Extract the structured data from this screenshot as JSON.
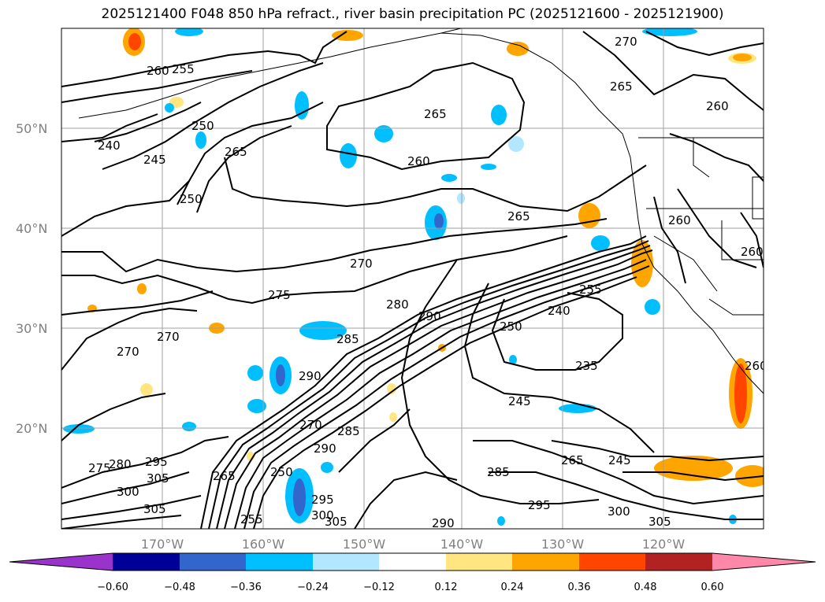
{
  "title": "2025121400 F048 850 hPa refract., river basin precipitation PC (2025121600 - 2025121900)",
  "lat_labels": [
    "50°N",
    "40°N",
    "30°N",
    "20°N"
  ],
  "lon_labels": [
    "170°W",
    "160°W",
    "150°W",
    "140°W",
    "130°W",
    "120°W"
  ],
  "contour_labels": [
    "260",
    "255",
    "240",
    "245",
    "250",
    "250",
    "265",
    "265",
    "260",
    "270",
    "265",
    "260",
    "265",
    "260",
    "260",
    "270",
    "275",
    "280",
    "285",
    "290",
    "270",
    "270",
    "290",
    "285",
    "270",
    "290",
    "250",
    "240",
    "255",
    "235",
    "245",
    "245",
    "285",
    "295",
    "265",
    "300",
    "305",
    "275",
    "280",
    "295",
    "300",
    "305",
    "305",
    "265",
    "255",
    "250",
    "295",
    "300",
    "305",
    "290",
    "260"
  ],
  "colorbar": {
    "colors": [
      "#9933cc",
      "#000099",
      "#3366cc",
      "#00bfff",
      "#b3e6ff",
      "#ffffff",
      "#ffe680",
      "#ffa500",
      "#ff4500",
      "#b22222",
      "#ff88aa"
    ],
    "tick_labels": [
      "−0.60",
      "−0.48",
      "−0.36",
      "−0.24",
      "−0.12",
      "0.12",
      "0.24",
      "0.36",
      "0.48",
      "0.60"
    ]
  },
  "colors": {
    "contour": "#000000",
    "grid": "#a0a0a0",
    "axis_text": "#808080"
  }
}
